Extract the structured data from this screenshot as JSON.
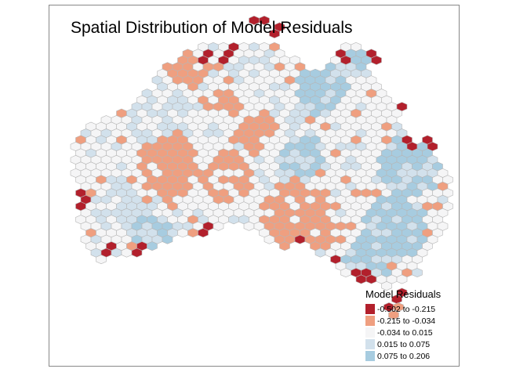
{
  "title": "Spatial Distribution of Model Residuals",
  "legend": {
    "title": "Model Residuals",
    "items": [
      {
        "label": "-0.502 to -0.215",
        "color": "#b2202c"
      },
      {
        "label": "-0.215 to -0.034",
        "color": "#ef9f80"
      },
      {
        "label": "-0.034 to 0.015",
        "color": "#f5f5f6"
      },
      {
        "label": "0.015 to 0.075",
        "color": "#d2e1ec"
      },
      {
        "label": "0.075 to 0.206",
        "color": "#a7cce0"
      }
    ]
  },
  "hex_border_color": "#b6b6b6"
}
